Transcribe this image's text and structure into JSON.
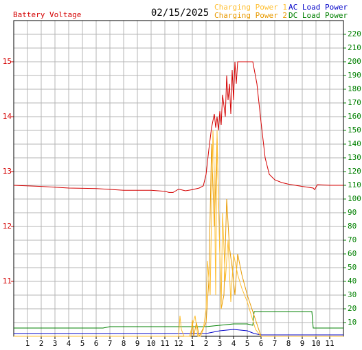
{
  "chart_data": {
    "type": "line",
    "title": "Battery Voltage",
    "date": "02/15/2025",
    "xlim": [
      0,
      24
    ],
    "xticks": [
      1,
      2,
      3,
      4,
      5,
      6,
      7,
      8,
      9,
      10,
      11,
      12,
      {
        "value": 13,
        "label": "1"
      },
      {
        "value": 14,
        "label": "2"
      },
      {
        "value": 15,
        "label": "3"
      },
      {
        "value": 16,
        "label": "4"
      },
      {
        "value": 17,
        "label": "5"
      },
      {
        "value": 18,
        "label": "6"
      },
      {
        "value": 19,
        "label": "7"
      },
      {
        "value": 20,
        "label": "8"
      },
      {
        "value": 21,
        "label": "9"
      },
      {
        "value": 22,
        "label": "10"
      },
      {
        "value": 23,
        "label": "11"
      }
    ],
    "ylim": [
      10,
      15.75
    ],
    "yticks": [
      11,
      12,
      13,
      14,
      15
    ],
    "y2lim": [
      0,
      230
    ],
    "y2ticks": [
      10,
      20,
      30,
      40,
      50,
      60,
      70,
      80,
      90,
      100,
      110,
      120,
      130,
      140,
      150,
      160,
      170,
      180,
      190,
      200,
      210,
      220
    ],
    "grid": true,
    "series": [
      {
        "name": "Battery Voltage",
        "color": "#d40000",
        "axis": "y",
        "x": [
          0,
          2,
          4,
          6,
          8,
          10,
          11,
          11.3,
          11.6,
          12,
          12.5,
          13,
          13.5,
          13.8,
          14,
          14.2,
          14.4,
          14.6,
          14.7,
          14.8,
          14.9,
          15,
          15.1,
          15.2,
          15.4,
          15.5,
          15.6,
          15.7,
          15.8,
          15.9,
          16,
          16.1,
          16.2,
          16.3,
          16.5,
          17,
          17.4,
          17.7,
          18,
          18.3,
          18.6,
          19,
          19.5,
          20,
          21,
          21.8,
          21.9,
          22.1,
          23,
          24
        ],
        "values": [
          12.75,
          12.73,
          12.7,
          12.69,
          12.66,
          12.66,
          12.64,
          12.62,
          12.62,
          12.68,
          12.65,
          12.67,
          12.7,
          12.74,
          12.95,
          13.4,
          13.8,
          14.05,
          13.8,
          14.0,
          13.75,
          14.1,
          13.85,
          14.4,
          14.0,
          14.75,
          14.3,
          14.6,
          14.05,
          14.85,
          14.3,
          15.0,
          14.6,
          15.0,
          15.0,
          15.0,
          15.0,
          14.6,
          13.9,
          13.25,
          12.95,
          12.85,
          12.8,
          12.77,
          12.73,
          12.7,
          12.67,
          12.76,
          12.75,
          12.75
        ]
      },
      {
        "name": "Charging Power 1",
        "color": "#ffbf30",
        "axis": "y2",
        "x": [
          0,
          12,
          12.1,
          12.2,
          12.4,
          12.8,
          13,
          13.2,
          13.4,
          13.6,
          13.8,
          14,
          14.1,
          14.3,
          14.4,
          14.5,
          14.6,
          14.7,
          14.8,
          14.9,
          15,
          15.1,
          15.2,
          15.4,
          15.6,
          15.8,
          16,
          16.3,
          16.6,
          17,
          17.3,
          17.6,
          18,
          24
        ],
        "values": [
          0,
          0,
          15,
          5,
          0,
          0,
          8,
          15,
          0,
          0,
          5,
          20,
          55,
          30,
          90,
          150,
          120,
          30,
          150,
          100,
          60,
          20,
          90,
          40,
          70,
          25,
          60,
          45,
          35,
          25,
          15,
          5,
          0,
          0
        ]
      },
      {
        "name": "Charging Power 2",
        "color": "#e89a00",
        "axis": "y2",
        "x": [
          0,
          12.9,
          13,
          13.1,
          13.3,
          13.5,
          14,
          14.2,
          14.4,
          14.6,
          14.8,
          15,
          15.1,
          15.3,
          15.5,
          15.7,
          15.9,
          16.1,
          16.3,
          16.6,
          17,
          17.5,
          18,
          24
        ],
        "values": [
          0,
          0,
          12,
          0,
          10,
          0,
          10,
          40,
          140,
          80,
          145,
          60,
          20,
          30,
          100,
          65,
          50,
          30,
          60,
          45,
          30,
          15,
          0,
          0
        ]
      },
      {
        "name": "AC Load Power",
        "color": "#0000c8",
        "axis": "y2",
        "x": [
          0,
          14,
          15,
          16,
          17,
          17.5,
          18,
          24
        ],
        "values": [
          2,
          2,
          4,
          5,
          4,
          2,
          1,
          1
        ]
      },
      {
        "name": "DC Load Power",
        "color": "#008000",
        "axis": "y2",
        "x": [
          0,
          6.5,
          7,
          14,
          15,
          16,
          17,
          17.4,
          17.5,
          21.7,
          21.8,
          24
        ],
        "values": [
          6,
          6,
          7,
          7,
          8,
          9,
          9,
          8,
          18,
          18,
          6,
          6
        ]
      }
    ]
  }
}
